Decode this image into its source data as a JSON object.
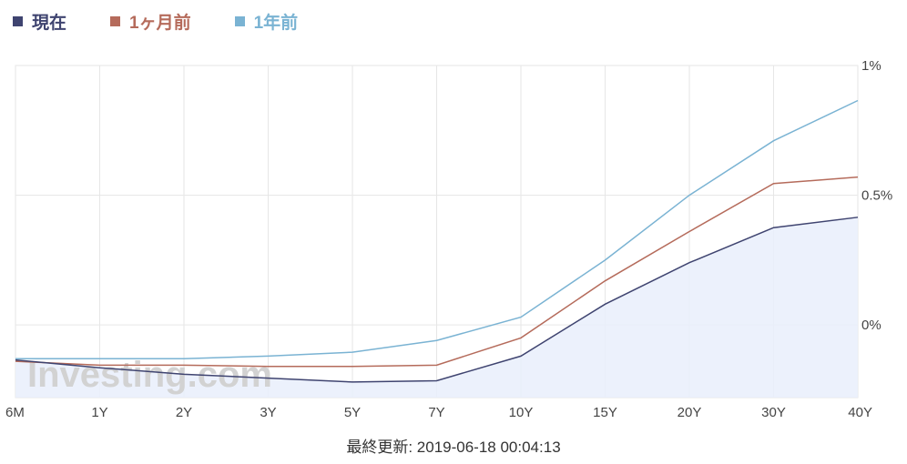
{
  "legend": [
    {
      "label": "現在",
      "color": "#3f4470"
    },
    {
      "label": "1ヶ月前",
      "color": "#b56b5b"
    },
    {
      "label": "1年前",
      "color": "#7ab3d3"
    }
  ],
  "watermark": "Investing.com",
  "footer": {
    "updated": "最終更新: 2019-06-18 00:04:13"
  },
  "chart_data": {
    "type": "line",
    "categories": [
      "6M",
      "1Y",
      "2Y",
      "3Y",
      "5Y",
      "7Y",
      "10Y",
      "15Y",
      "20Y",
      "30Y",
      "40Y"
    ],
    "series": [
      {
        "name": "現在",
        "color": "#3f4470",
        "area": true,
        "values": [
          -0.135,
          -0.165,
          -0.19,
          -0.205,
          -0.22,
          -0.215,
          -0.12,
          0.08,
          0.24,
          0.375,
          0.415
        ]
      },
      {
        "name": "1ヶ月前",
        "color": "#b56b5b",
        "values": [
          -0.14,
          -0.155,
          -0.155,
          -0.16,
          -0.16,
          -0.155,
          -0.05,
          0.17,
          0.36,
          0.545,
          0.57
        ]
      },
      {
        "name": "1年前",
        "color": "#7ab3d3",
        "values": [
          -0.13,
          -0.13,
          -0.13,
          -0.12,
          -0.105,
          -0.06,
          0.03,
          0.25,
          0.5,
          0.71,
          0.865
        ]
      }
    ],
    "y_ticks": [
      "1%",
      "0.5%",
      "0%"
    ],
    "y_tick_values": [
      1,
      0.5,
      0
    ],
    "ylim": [
      -0.28,
      1.0
    ],
    "grid": true,
    "y_axis_position": "right",
    "legend_position": "top-left"
  }
}
